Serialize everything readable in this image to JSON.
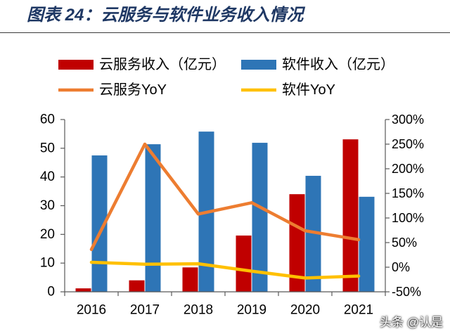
{
  "chart_data": {
    "type": "bar",
    "title": "图表 24：云服务与软件业务收入情况",
    "categories": [
      "2016",
      "2017",
      "2018",
      "2019",
      "2020",
      "2021"
    ],
    "series": [
      {
        "name": "云服务收入（亿元）",
        "type": "bar",
        "axis": "left",
        "color": "#C00000",
        "values": [
          1.2,
          4.0,
          8.5,
          19.6,
          34.0,
          53.1
        ]
      },
      {
        "name": "软件收入（亿元）",
        "type": "bar",
        "axis": "left",
        "color": "#2E75B6",
        "values": [
          47.5,
          51.4,
          55.8,
          51.9,
          40.4,
          33.1
        ]
      },
      {
        "name": "云服务YoY",
        "type": "line",
        "axis": "right",
        "color": "#ED7D31",
        "values": [
          36,
          250,
          108,
          131,
          74,
          56
        ]
      },
      {
        "name": "软件YoY",
        "type": "line",
        "axis": "right",
        "color": "#FFC000",
        "values": [
          10,
          6,
          7,
          -8,
          -22,
          -18
        ]
      }
    ],
    "y_left": {
      "ylim": [
        0,
        60
      ],
      "ticks": [
        0,
        10,
        20,
        30,
        40,
        50,
        60
      ]
    },
    "y_right": {
      "ylim": [
        -50,
        300
      ],
      "ticks": [
        -50,
        0,
        50,
        100,
        150,
        200,
        250,
        300
      ],
      "tick_labels": [
        "-50%",
        "0%",
        "50%",
        "100%",
        "150%",
        "200%",
        "250%",
        "300%"
      ]
    },
    "grid": false,
    "legend": "top"
  },
  "watermark": {
    "text": "头条 @认是"
  }
}
